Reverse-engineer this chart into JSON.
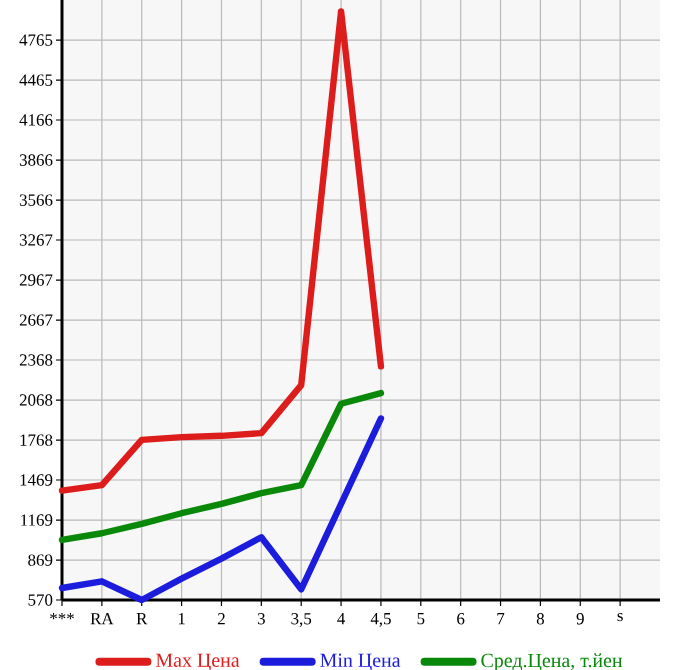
{
  "chart_data": {
    "type": "line",
    "categories": [
      "***",
      "RA",
      "R",
      "1",
      "2",
      "3",
      "3,5",
      "4",
      "4,5",
      "5",
      "6",
      "7",
      "8",
      "9",
      "s"
    ],
    "series": [
      {
        "name": "Max Цена",
        "color": "#dd1c1c",
        "values": [
          1390,
          1430,
          1770,
          1790,
          1800,
          1820,
          2180,
          4980,
          2320,
          null,
          null,
          null,
          null,
          null,
          null
        ]
      },
      {
        "name": "Min Цена",
        "color": "#1c1cdd",
        "values": [
          660,
          710,
          570,
          730,
          880,
          1040,
          650,
          1290,
          1930,
          null,
          null,
          null,
          null,
          null,
          null
        ]
      },
      {
        "name": "Сред.Цена, т.йен",
        "color": "#0a880a",
        "values": [
          1020,
          1070,
          1140,
          1220,
          1290,
          1370,
          1430,
          2040,
          2120,
          null,
          null,
          null,
          null,
          null,
          null
        ]
      }
    ],
    "ylim": [
      570,
      5065
    ],
    "yticks": [
      570,
      869,
      1169,
      1469,
      1768,
      2068,
      2368,
      2667,
      2967,
      3267,
      3566,
      3866,
      4166,
      4465,
      4765
    ],
    "grid": true,
    "legend": "bottom",
    "marker": "none",
    "line_style": "solid"
  }
}
